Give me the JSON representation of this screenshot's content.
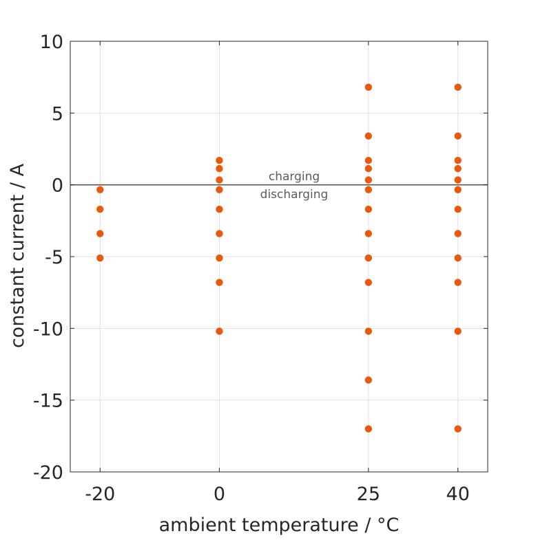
{
  "chart_data": {
    "type": "scatter",
    "title": "",
    "xlabel": "ambient temperature / °C",
    "ylabel": "constant current / A",
    "x_ticks": [
      -20,
      0,
      25,
      40
    ],
    "y_ticks": [
      -20,
      -15,
      -10,
      -5,
      0,
      5,
      10
    ],
    "xlim": [
      -25,
      45
    ],
    "ylim": [
      -20,
      10
    ],
    "grid": true,
    "marker_color": "#e8590c",
    "reference_line_y": 0,
    "annotations": {
      "above_line": "charging",
      "below_line": "discharging"
    },
    "series": [
      {
        "points": [
          {
            "x": -20,
            "y": -0.34
          },
          {
            "x": -20,
            "y": -1.7
          },
          {
            "x": -20,
            "y": -3.4
          },
          {
            "x": -20,
            "y": -5.1
          },
          {
            "x": 0,
            "y": 1.7
          },
          {
            "x": 0,
            "y": 1.13
          },
          {
            "x": 0,
            "y": 0.34
          },
          {
            "x": 0,
            "y": -0.34
          },
          {
            "x": 0,
            "y": -1.7
          },
          {
            "x": 0,
            "y": -3.4
          },
          {
            "x": 0,
            "y": -5.1
          },
          {
            "x": 0,
            "y": -6.8
          },
          {
            "x": 0,
            "y": -10.2
          },
          {
            "x": 25,
            "y": 6.8
          },
          {
            "x": 25,
            "y": 3.4
          },
          {
            "x": 25,
            "y": 1.7
          },
          {
            "x": 25,
            "y": 1.13
          },
          {
            "x": 25,
            "y": 0.34
          },
          {
            "x": 25,
            "y": -0.34
          },
          {
            "x": 25,
            "y": -1.7
          },
          {
            "x": 25,
            "y": -3.4
          },
          {
            "x": 25,
            "y": -5.1
          },
          {
            "x": 25,
            "y": -6.8
          },
          {
            "x": 25,
            "y": -10.2
          },
          {
            "x": 25,
            "y": -13.6
          },
          {
            "x": 25,
            "y": -17.0
          },
          {
            "x": 40,
            "y": 6.8
          },
          {
            "x": 40,
            "y": 3.4
          },
          {
            "x": 40,
            "y": 1.7
          },
          {
            "x": 40,
            "y": 1.13
          },
          {
            "x": 40,
            "y": 0.34
          },
          {
            "x": 40,
            "y": -0.34
          },
          {
            "x": 40,
            "y": -1.7
          },
          {
            "x": 40,
            "y": -3.4
          },
          {
            "x": 40,
            "y": -5.1
          },
          {
            "x": 40,
            "y": -6.8
          },
          {
            "x": 40,
            "y": -10.2
          },
          {
            "x": 40,
            "y": -17.0
          }
        ]
      }
    ]
  }
}
